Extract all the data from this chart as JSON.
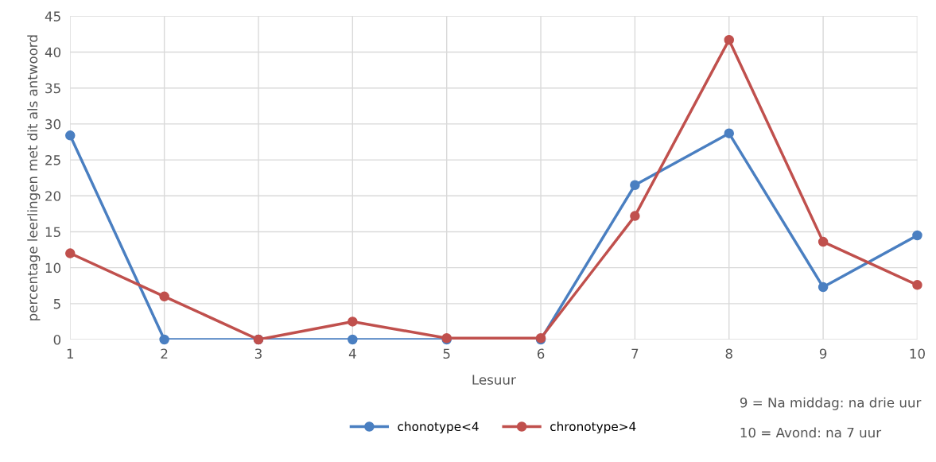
{
  "chart_data": {
    "type": "line",
    "xlabel": "Lesuur",
    "ylabel": "percentage leerlingen met dit als antwoord",
    "x": [
      1,
      2,
      3,
      4,
      5,
      6,
      7,
      8,
      9,
      10
    ],
    "series": [
      {
        "name": "chonotype<4",
        "color": "#4a7fc1",
        "values": [
          28.4,
          0,
          0,
          0,
          0,
          0,
          21.5,
          28.7,
          7.3,
          14.5
        ]
      },
      {
        "name": "chronotype>4",
        "color": "#c0504d",
        "values": [
          12,
          6,
          0,
          2.5,
          0.2,
          0.2,
          17.2,
          41.7,
          13.6,
          7.6
        ]
      }
    ],
    "xlim": [
      1,
      10
    ],
    "xticks": [
      1,
      2,
      3,
      4,
      5,
      6,
      7,
      8,
      9,
      10
    ],
    "ylim": [
      0,
      45
    ],
    "yticks": [
      0,
      5,
      10,
      15,
      20,
      25,
      30,
      35,
      40,
      45
    ],
    "grid": true,
    "legend": "bottom",
    "marker": "circle",
    "line_style": "solid",
    "annotations": [
      "9 = Na middag: na drie uur",
      "10 = Avond: na 7 uur"
    ]
  }
}
